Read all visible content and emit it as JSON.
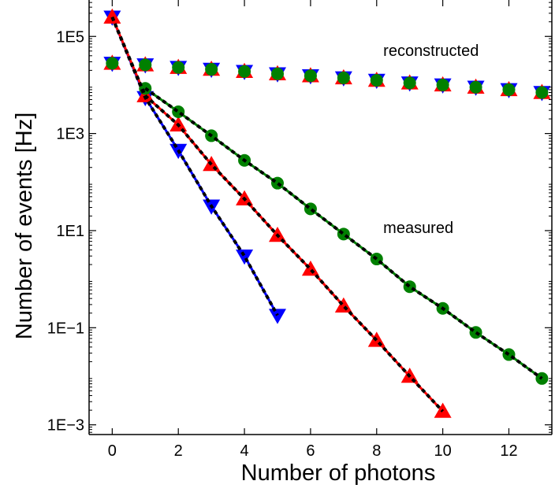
{
  "chart_data": {
    "type": "line",
    "xlabel": "Number of photons",
    "ylabel": "Number of events [Hz]",
    "xlim": [
      -0.7,
      13.3
    ],
    "ylim_log10": [
      -3.2,
      5.75
    ],
    "y_scale": "log",
    "x_ticks": [
      0,
      2,
      4,
      6,
      8,
      10,
      12
    ],
    "y_ticks": [
      {
        "value": 100000.0,
        "label": "1E5"
      },
      {
        "value": 1000.0,
        "label": "1E3"
      },
      {
        "value": 10.0,
        "label": "1E1"
      },
      {
        "value": 0.1,
        "label": "1E−1"
      },
      {
        "value": 0.001,
        "label": "1E−3"
      }
    ],
    "annotations": [
      {
        "text": "reconstructed",
        "x": 8.2,
        "y": 40000
      },
      {
        "text": "measured",
        "x": 8.2,
        "y": 9
      }
    ],
    "colors": {
      "blue": "#0000ff",
      "red": "#ff0000",
      "green": "#008000",
      "fit": "#000000"
    },
    "series": [
      {
        "group": "measured",
        "marker": "triangle-down",
        "color": "#0000ff",
        "x": [
          0,
          1,
          2,
          3,
          4,
          5
        ],
        "y": [
          250000,
          5500,
          450,
          32,
          3,
          0.18
        ]
      },
      {
        "group": "measured",
        "marker": "triangle-up",
        "color": "#ff0000",
        "x": [
          0,
          1,
          2,
          3,
          4,
          5,
          6,
          7,
          8,
          9,
          10
        ],
        "y": [
          250000,
          6000,
          1500,
          230,
          45,
          8,
          1.6,
          0.28,
          0.055,
          0.01,
          0.0019
        ]
      },
      {
        "group": "measured",
        "marker": "circle",
        "color": "#008000",
        "x": [
          1,
          2,
          3,
          4,
          5,
          6,
          7,
          8,
          9,
          10,
          11,
          12,
          13
        ],
        "y": [
          8500,
          2800,
          900,
          280,
          95,
          28,
          8.5,
          2.6,
          0.7,
          0.25,
          0.08,
          0.028,
          0.009
        ]
      },
      {
        "group": "reconstructed",
        "marker": "triangle-down",
        "color": "#0000ff",
        "x": [
          0,
          1,
          2,
          3,
          4,
          5,
          6,
          7,
          8,
          9,
          10,
          11,
          12,
          13
        ],
        "y": [
          28000,
          26000,
          23000,
          21000,
          19000,
          17000,
          15500,
          14000,
          12500,
          11000,
          10000,
          9000,
          8000,
          7000
        ]
      },
      {
        "group": "reconstructed",
        "marker": "triangle-up",
        "color": "#ff0000",
        "x": [
          0,
          1,
          2,
          3,
          4,
          5,
          6,
          7,
          8,
          9,
          10,
          11,
          12,
          13
        ],
        "y": [
          28000,
          26000,
          23000,
          21000,
          19000,
          17000,
          15500,
          14000,
          12500,
          11000,
          10000,
          9000,
          8000,
          7000
        ]
      },
      {
        "group": "reconstructed",
        "marker": "circle",
        "color": "#008000",
        "x": [
          0,
          1,
          2,
          3,
          4,
          5,
          6,
          7,
          8,
          9,
          10,
          11,
          12,
          13
        ],
        "y": [
          28000,
          26000,
          23000,
          21000,
          19000,
          17000,
          15500,
          14000,
          12500,
          11000,
          10000,
          9000,
          8000,
          7000
        ]
      }
    ],
    "fits": [
      {
        "color": "#000000",
        "style": "dotted",
        "x": [
          0,
          1,
          2,
          3,
          4,
          5
        ],
        "y": [
          250000,
          5500,
          450,
          32,
          3,
          0.18
        ]
      },
      {
        "color": "#000000",
        "style": "dotted",
        "x": [
          0,
          1,
          2,
          3,
          4,
          5,
          6,
          7,
          8,
          9,
          10
        ],
        "y": [
          250000,
          6000,
          1500,
          230,
          45,
          8,
          1.6,
          0.28,
          0.055,
          0.01,
          0.0019
        ]
      },
      {
        "color": "#000000",
        "style": "dotted",
        "x": [
          1,
          2,
          3,
          4,
          5,
          6,
          7,
          8,
          9,
          10,
          11,
          12,
          13
        ],
        "y": [
          8500,
          2800,
          900,
          280,
          95,
          28,
          8.5,
          2.6,
          0.7,
          0.25,
          0.08,
          0.028,
          0.009
        ]
      }
    ]
  }
}
